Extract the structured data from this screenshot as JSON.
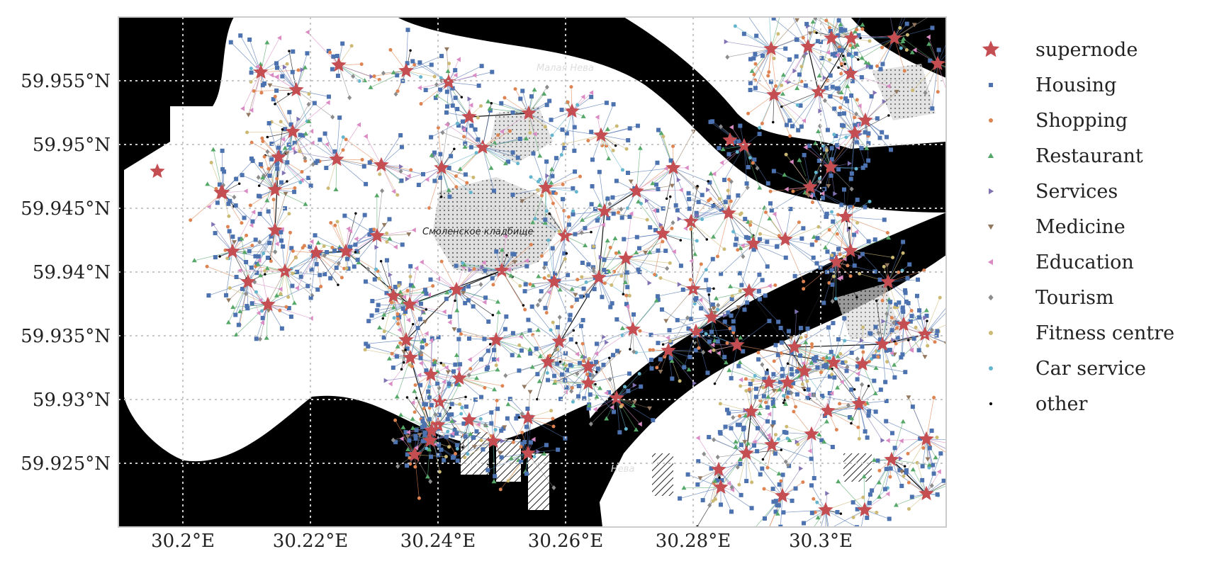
{
  "map": {
    "x_ticks": [
      "30.2°E",
      "30.22°E",
      "30.24°E",
      "30.26°E",
      "30.28°E",
      "30.3°E"
    ],
    "y_ticks": [
      "59.955°N",
      "59.95°N",
      "59.945°N",
      "59.94°N",
      "59.935°N",
      "59.93°N",
      "59.925°N"
    ],
    "place_labels": [
      "Малая Нева",
      "Смоленское кладбище",
      "Нева"
    ],
    "colors": {
      "water": "#000000",
      "land": "#ffffff",
      "grid": "#c8c8c8",
      "frame": "#cccccc",
      "supernode": "#c44e52"
    }
  },
  "legend": {
    "items": [
      {
        "label": "supernode",
        "marker": "star",
        "color": "#c44e52"
      },
      {
        "label": "Housing",
        "marker": "square",
        "color": "#4c72b0"
      },
      {
        "label": "Shopping",
        "marker": "circle",
        "color": "#dd8452"
      },
      {
        "label": "Restaurant",
        "marker": "triangle-up",
        "color": "#55a868"
      },
      {
        "label": "Services",
        "marker": "triangle-right",
        "color": "#8172b3"
      },
      {
        "label": "Medicine",
        "marker": "triangle-down",
        "color": "#937860"
      },
      {
        "label": "Education",
        "marker": "triangle-left",
        "color": "#da8bc3"
      },
      {
        "label": "Tourism",
        "marker": "diamond",
        "color": "#8c8c8c"
      },
      {
        "label": "Fitness centre",
        "marker": "circle",
        "color": "#ccb974"
      },
      {
        "label": "Car service",
        "marker": "circle",
        "color": "#64b5cd"
      },
      {
        "label": "other",
        "marker": "dot",
        "color": "#000000"
      }
    ]
  }
}
